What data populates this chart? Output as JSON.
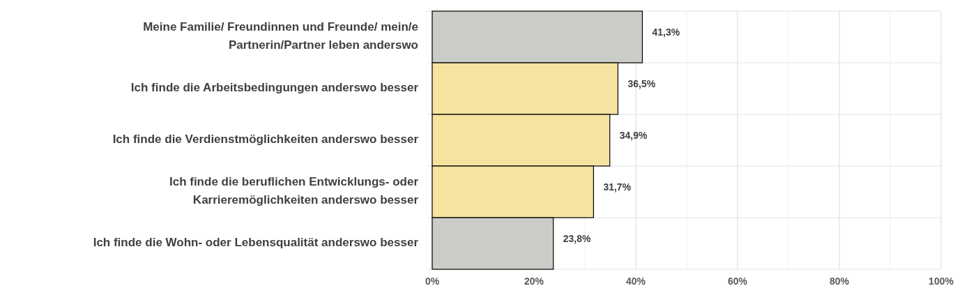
{
  "chart_data": {
    "type": "bar",
    "orientation": "horizontal",
    "categories": [
      "Meine Familie/ Freundinnen und Freunde/ mein/e Partnerin/Partner leben anderswo",
      "Ich finde die Arbeitsbedingungen anderswo besser",
      "Ich finde die Verdienstmöglichkeiten anderswo besser",
      "Ich finde die beruflichen Entwicklungs- oder Karrieremöglichkeiten anderswo besser",
      "Ich finde die Wohn- oder Lebensqualität anderswo besser"
    ],
    "values": [
      41.3,
      36.5,
      34.9,
      31.7,
      23.8
    ],
    "colors": [
      "#c9ccc7",
      "#f6e3a0",
      "#f6e3a0",
      "#f6e3a0",
      "#c9ccc7"
    ],
    "value_labels": [
      "41,3%",
      "36,5%",
      "34,9%",
      "31,7%",
      "23,8%"
    ],
    "xlim": [
      0,
      100
    ],
    "xticks": [
      {
        "value": 0,
        "label": "0%"
      },
      {
        "value": 20,
        "label": "20%"
      },
      {
        "value": 30,
        "label": null
      },
      {
        "value": 40,
        "label": "40%"
      },
      {
        "value": 50,
        "label": null
      },
      {
        "value": 60,
        "label": "60%"
      },
      {
        "value": 70,
        "label": null
      },
      {
        "value": 80,
        "label": "80%"
      },
      {
        "value": 90,
        "label": null
      },
      {
        "value": 100,
        "label": "100%"
      }
    ],
    "grid": "x"
  }
}
